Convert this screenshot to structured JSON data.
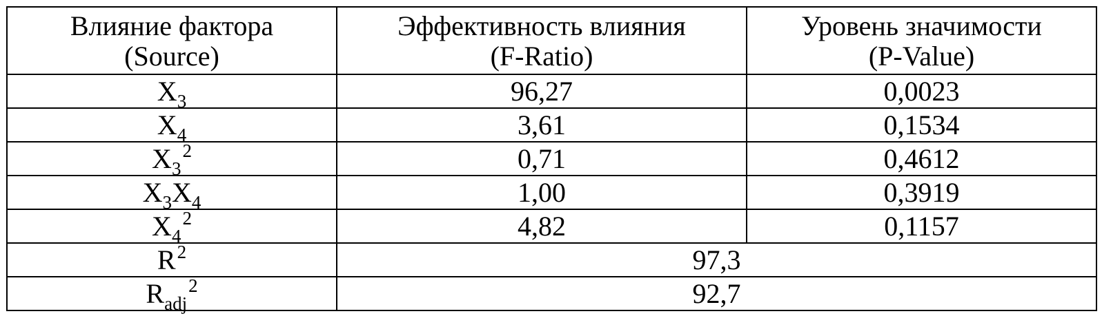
{
  "table": {
    "headers": [
      {
        "line1": "Влияние фактора",
        "line2": "(Source)"
      },
      {
        "line1": "Эффективность влияния",
        "line2": "(F-Ratio)"
      },
      {
        "line1": "Уровень значимости",
        "line2": "(P-Value)"
      }
    ],
    "rows": [
      {
        "source": {
          "base": "X",
          "sub": "3",
          "base2": "",
          "sub2": "",
          "sup": ""
        },
        "f_ratio": "96,27",
        "p_value": "0,0023"
      },
      {
        "source": {
          "base": "X",
          "sub": "4",
          "base2": "",
          "sub2": "",
          "sup": ""
        },
        "f_ratio": "3,61",
        "p_value": "0,1534"
      },
      {
        "source": {
          "base": "X",
          "sub": "3",
          "base2": "",
          "sub2": "",
          "sup": "2"
        },
        "f_ratio": "0,71",
        "p_value": "0,4612"
      },
      {
        "source": {
          "base": "X",
          "sub": "3",
          "base2": "X",
          "sub2": "4",
          "sup": ""
        },
        "f_ratio": "1,00",
        "p_value": "0,3919"
      },
      {
        "source": {
          "base": "X",
          "sub": "4",
          "base2": "",
          "sub2": "",
          "sup": "2"
        },
        "f_ratio": "4,82",
        "p_value": "0,1157"
      }
    ],
    "summary": [
      {
        "label": {
          "base": "R",
          "sub": "",
          "sup": "2"
        },
        "value": "97,3"
      },
      {
        "label": {
          "base": "R",
          "sub": "adj",
          "sup": "2"
        },
        "value": "92,7"
      }
    ]
  }
}
